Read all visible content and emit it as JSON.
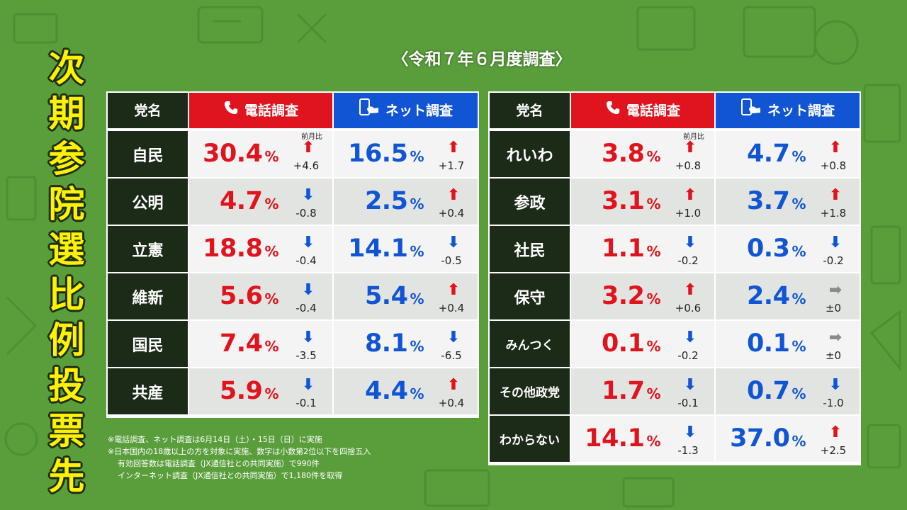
{
  "vertical_title": [
    "次",
    "期",
    "参",
    "院",
    "選",
    "比",
    "例",
    "投",
    "票",
    "先"
  ],
  "subtitle": "〈令和７年６月度調査〉",
  "headers": {
    "party": "党名",
    "phone": "電話調査",
    "net": "ネット調査"
  },
  "mom_label": "前月比",
  "colors": {
    "phone": "#e0141e",
    "net": "#1155d4",
    "party_bg": "#1c2a18",
    "title": "#fff200",
    "background": "#5a9e3c"
  },
  "chart_data": {
    "type": "table",
    "columns": [
      "党名",
      "電話調査",
      "前月比",
      "ネット調査",
      "前月比"
    ],
    "unit": "%",
    "left_table": [
      {
        "party": "自民",
        "phone": {
          "value": "30.4",
          "dir": "up",
          "delta": "+4.6"
        },
        "net": {
          "value": "16.5",
          "dir": "up",
          "delta": "+1.7"
        }
      },
      {
        "party": "公明",
        "phone": {
          "value": "4.7",
          "dir": "down",
          "delta": "-0.8"
        },
        "net": {
          "value": "2.5",
          "dir": "up",
          "delta": "+0.4"
        }
      },
      {
        "party": "立憲",
        "phone": {
          "value": "18.8",
          "dir": "down",
          "delta": "-0.4"
        },
        "net": {
          "value": "14.1",
          "dir": "down",
          "delta": "-0.5"
        }
      },
      {
        "party": "維新",
        "phone": {
          "value": "5.6",
          "dir": "down",
          "delta": "-0.4"
        },
        "net": {
          "value": "5.4",
          "dir": "up",
          "delta": "+0.4"
        }
      },
      {
        "party": "国民",
        "phone": {
          "value": "7.4",
          "dir": "down",
          "delta": "-3.5"
        },
        "net": {
          "value": "8.1",
          "dir": "down",
          "delta": "-6.5"
        }
      },
      {
        "party": "共産",
        "phone": {
          "value": "5.9",
          "dir": "down",
          "delta": "-0.1"
        },
        "net": {
          "value": "4.4",
          "dir": "up",
          "delta": "+0.4"
        }
      }
    ],
    "right_table": [
      {
        "party": "れいわ",
        "phone": {
          "value": "3.8",
          "dir": "up",
          "delta": "+0.8"
        },
        "net": {
          "value": "4.7",
          "dir": "up",
          "delta": "+0.8"
        }
      },
      {
        "party": "参政",
        "phone": {
          "value": "3.1",
          "dir": "up",
          "delta": "+1.0"
        },
        "net": {
          "value": "3.7",
          "dir": "up",
          "delta": "+1.8"
        }
      },
      {
        "party": "社民",
        "phone": {
          "value": "1.1",
          "dir": "down",
          "delta": "-0.2"
        },
        "net": {
          "value": "0.3",
          "dir": "down",
          "delta": "-0.2"
        }
      },
      {
        "party": "保守",
        "phone": {
          "value": "3.2",
          "dir": "up",
          "delta": "+0.6"
        },
        "net": {
          "value": "2.4",
          "dir": "flat",
          "delta": "±0"
        }
      },
      {
        "party": "みんつく",
        "phone": {
          "value": "0.1",
          "dir": "down",
          "delta": "-0.2"
        },
        "net": {
          "value": "0.1",
          "dir": "flat",
          "delta": "±0"
        }
      },
      {
        "party": "その他政党",
        "phone": {
          "value": "1.7",
          "dir": "down",
          "delta": "-0.1"
        },
        "net": {
          "value": "0.7",
          "dir": "down",
          "delta": "-1.0"
        }
      },
      {
        "party": "わからない",
        "phone": {
          "value": "14.1",
          "dir": "down",
          "delta": "-1.3"
        },
        "net": {
          "value": "37.0",
          "dir": "up",
          "delta": "+2.5"
        }
      }
    ]
  },
  "notes": [
    "※電話調査、ネット調査は6月14日（土）・15日（日）に実施",
    "※日本国内の18歳以上の方を対象に実施、数字は小数第2位以下を四捨五入",
    "有効回答数は電話調査（JX通信社との共同実施）で990件",
    "インターネット調査（JX通信社との共同実施）で1,180件を取得"
  ]
}
